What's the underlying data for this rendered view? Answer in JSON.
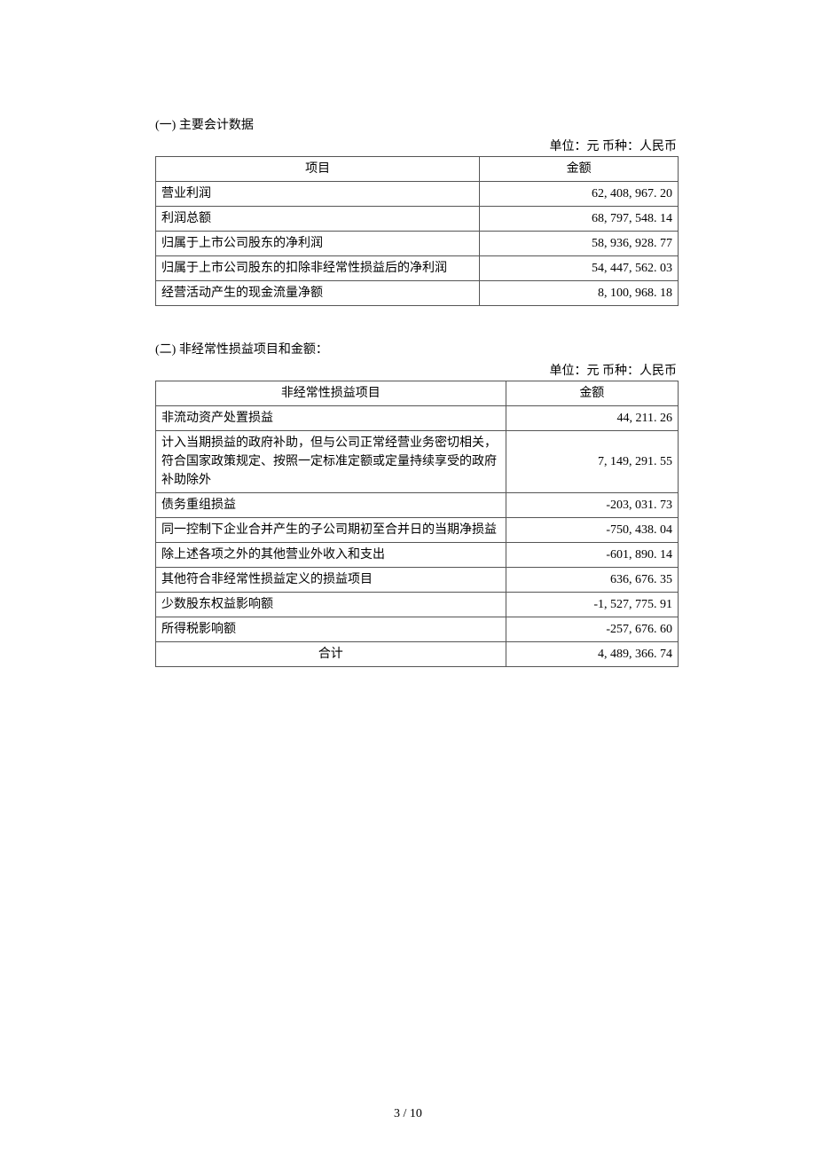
{
  "section1": {
    "heading": "(一) 主要会计数据",
    "unit": "单位：元 币种：人民币",
    "header_item": "项目",
    "header_amount": "金额",
    "rows": [
      {
        "label": "营业利润",
        "amount": "62, 408, 967. 20"
      },
      {
        "label": "利润总额",
        "amount": "68, 797, 548. 14"
      },
      {
        "label": "归属于上市公司股东的净利润",
        "amount": "58, 936, 928. 77"
      },
      {
        "label": "归属于上市公司股东的扣除非经常性损益后的净利润",
        "amount": "54, 447, 562. 03"
      },
      {
        "label": "经营活动产生的现金流量净额",
        "amount": "8, 100, 968. 18"
      }
    ]
  },
  "section2": {
    "heading": "(二) 非经常性损益项目和金额：",
    "unit": "单位：元 币种：人民币",
    "header_item": "非经常性损益项目",
    "header_amount": "金额",
    "rows": [
      {
        "label": "非流动资产处置损益",
        "amount": "44, 211. 26"
      },
      {
        "label": "计入当期损益的政府补助，但与公司正常经营业务密切相关，符合国家政策规定、按照一定标准定额或定量持续享受的政府补助除外",
        "amount": "7, 149, 291. 55"
      },
      {
        "label": "债务重组损益",
        "amount": "-203, 031. 73"
      },
      {
        "label": "同一控制下企业合并产生的子公司期初至合并日的当期净损益",
        "amount": "-750, 438. 04"
      },
      {
        "label": "除上述各项之外的其他营业外收入和支出",
        "amount": "-601, 890. 14"
      },
      {
        "label": "其他符合非经常性损益定义的损益项目",
        "amount": "636, 676. 35"
      },
      {
        "label": "少数股东权益影响额",
        "amount": "-1, 527, 775. 91"
      },
      {
        "label": "所得税影响额",
        "amount": "-257, 676. 60"
      }
    ],
    "total_label": "合计",
    "total_amount": "4, 489, 366. 74"
  },
  "footer": "3 / 10"
}
